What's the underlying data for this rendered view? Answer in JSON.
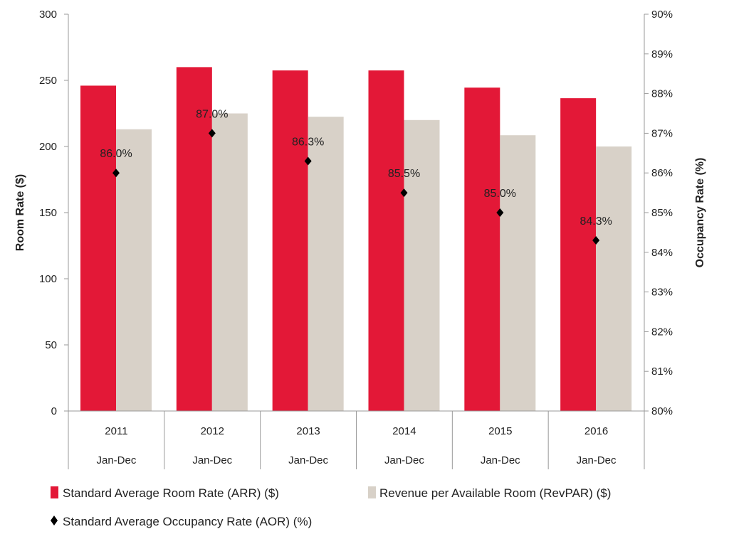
{
  "chart_data": {
    "type": "bar",
    "categories": [
      "2011",
      "2012",
      "2013",
      "2014",
      "2015",
      "2016"
    ],
    "subcategories": [
      "Jan-Dec",
      "Jan-Dec",
      "Jan-Dec",
      "Jan-Dec",
      "Jan-Dec",
      "Jan-Dec"
    ],
    "series": [
      {
        "name": "Standard Average Room Rate (ARR) ($)",
        "type": "bar",
        "axis": "left",
        "color": "#e31837",
        "values": [
          246,
          260,
          257.5,
          257.5,
          244.5,
          236.5
        ]
      },
      {
        "name": "Revenue per Available Room (RevPAR) ($)",
        "type": "bar",
        "axis": "left",
        "color": "#d8d1c8",
        "values": [
          213,
          225,
          222.5,
          220,
          208.5,
          200
        ]
      },
      {
        "name": "Standard Average Occupancy Rate (AOR) (%)",
        "type": "scatter",
        "marker": "diamond",
        "axis": "right",
        "color": "#000000",
        "values": [
          86.0,
          87.0,
          86.3,
          85.5,
          85.0,
          84.3
        ],
        "labels": [
          "86.0%",
          "87.0%",
          "86.3%",
          "85.5%",
          "85.0%",
          "84.3%"
        ]
      }
    ],
    "ylabel": "Room Rate ($)",
    "ylabel_right": "Occupancy Rate (%)",
    "ylim": [
      0,
      300
    ],
    "yticks": [
      "0",
      "50",
      "100",
      "150",
      "200",
      "250",
      "300"
    ],
    "ylim_right": [
      80,
      90
    ],
    "yticks_right": [
      "80%",
      "81%",
      "82%",
      "83%",
      "84%",
      "85%",
      "86%",
      "87%",
      "88%",
      "89%",
      "90%"
    ],
    "grid": false,
    "legend_position": "bottom"
  }
}
